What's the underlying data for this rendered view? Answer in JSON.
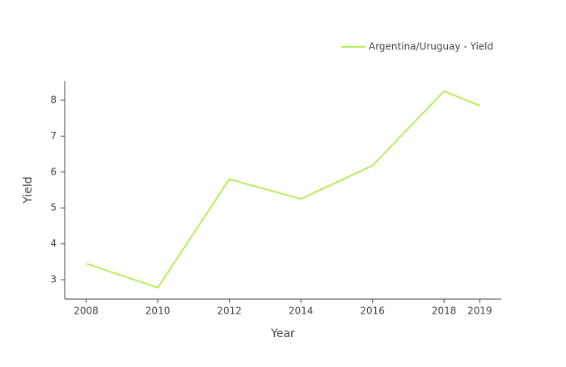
{
  "chart_data": {
    "type": "line",
    "x_label": "Year",
    "y_label": "Yield",
    "x": [
      2008,
      2010,
      2012,
      2014,
      2016,
      2018,
      2019
    ],
    "series": [
      {
        "name": "Argentina/Uruguay - Yield",
        "color": "#b6ec5c",
        "values": [
          3.45,
          2.78,
          5.8,
          5.25,
          6.18,
          8.25,
          7.85
        ]
      }
    ],
    "xlim": [
      2007.4,
      2019.6
    ],
    "xticks": [
      2008,
      2010,
      2012,
      2014,
      2016,
      2018,
      2019
    ],
    "ylim": [
      2.46,
      8.54
    ],
    "yticks": [
      3,
      4,
      5,
      6,
      7,
      8
    ],
    "grid": false,
    "legend_position": "top-right"
  }
}
